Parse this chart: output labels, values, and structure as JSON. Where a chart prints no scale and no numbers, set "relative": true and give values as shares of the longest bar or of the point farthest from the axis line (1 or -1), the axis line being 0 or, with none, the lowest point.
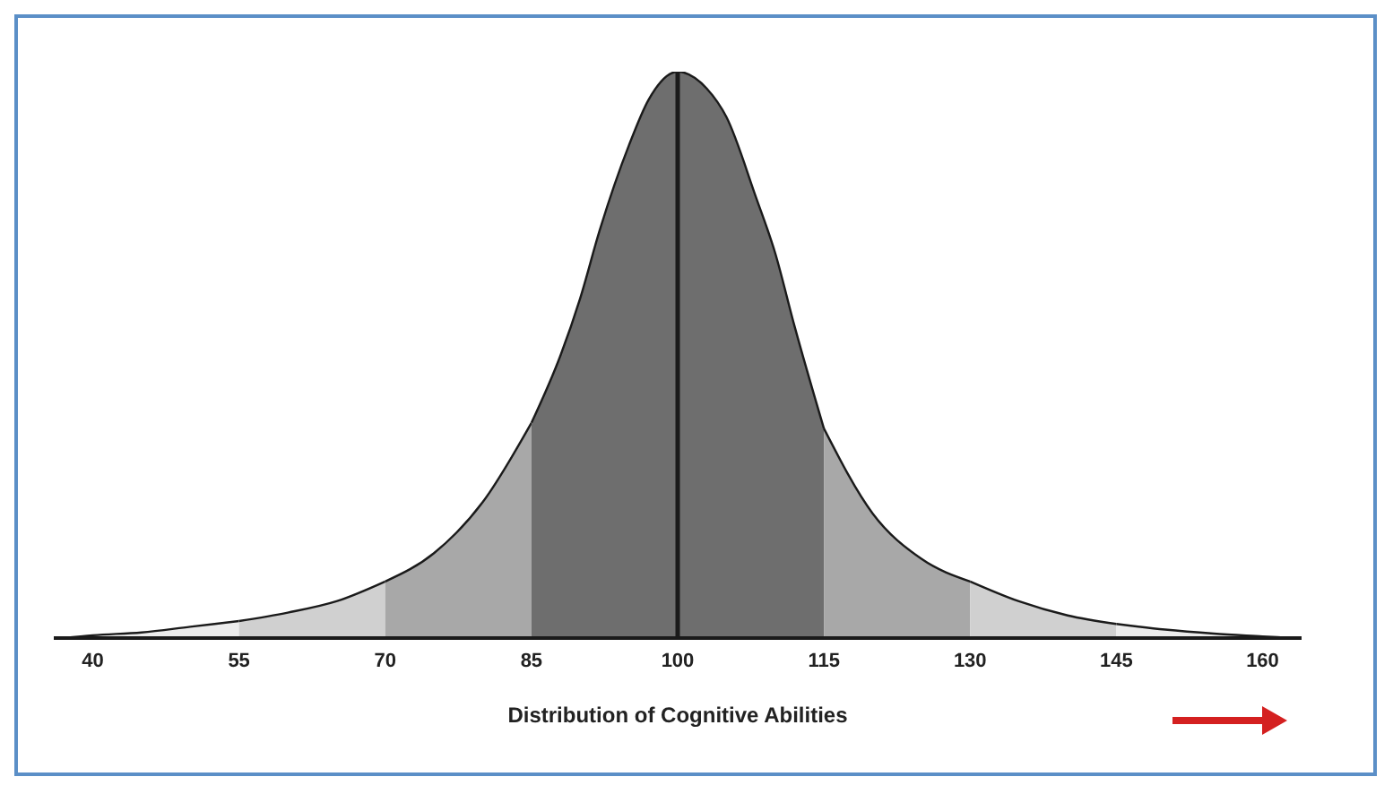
{
  "chart_data": {
    "type": "area",
    "relative": true,
    "xlabel": "Distribution of Cognitive Abilities",
    "xlim": [
      36,
      164
    ],
    "xticks": [
      40,
      55,
      70,
      85,
      100,
      115,
      130,
      145,
      160
    ],
    "series": [
      {
        "color": "#ececec",
        "x": [
          37,
          40,
          45,
          50,
          55
        ],
        "values": [
          0,
          0.005,
          0.01,
          0.02,
          0.03
        ]
      },
      {
        "color": "#d0d0d0",
        "x": [
          55,
          60,
          65,
          70
        ],
        "values": [
          0.03,
          0.045,
          0.065,
          0.1
        ]
      },
      {
        "color": "#a8a8a8",
        "x": [
          70,
          75,
          80,
          85
        ],
        "values": [
          0.1,
          0.15,
          0.24,
          0.38
        ]
      },
      {
        "color": "#6e6e6e",
        "x": [
          85,
          88,
          90,
          92,
          95,
          97,
          100,
          103,
          105,
          108,
          110,
          112,
          115
        ],
        "values": [
          0.38,
          0.5,
          0.6,
          0.72,
          0.87,
          0.95,
          1,
          0.97,
          0.92,
          0.78,
          0.68,
          0.55,
          0.37
        ]
      },
      {
        "color": "#a8a8a8",
        "x": [
          115,
          120,
          125,
          130
        ],
        "values": [
          0.37,
          0.22,
          0.14,
          0.1
        ]
      },
      {
        "color": "#d0d0d0",
        "x": [
          130,
          135,
          140,
          145
        ],
        "values": [
          0.1,
          0.065,
          0.04,
          0.025
        ]
      },
      {
        "color": "#ececec",
        "x": [
          145,
          150,
          155,
          160,
          163
        ],
        "values": [
          0.025,
          0.015,
          0.008,
          0.003,
          0
        ]
      }
    ],
    "ref_lines": [
      {
        "axis": "x",
        "value": 100,
        "color": "#1a1a1a"
      }
    ]
  }
}
